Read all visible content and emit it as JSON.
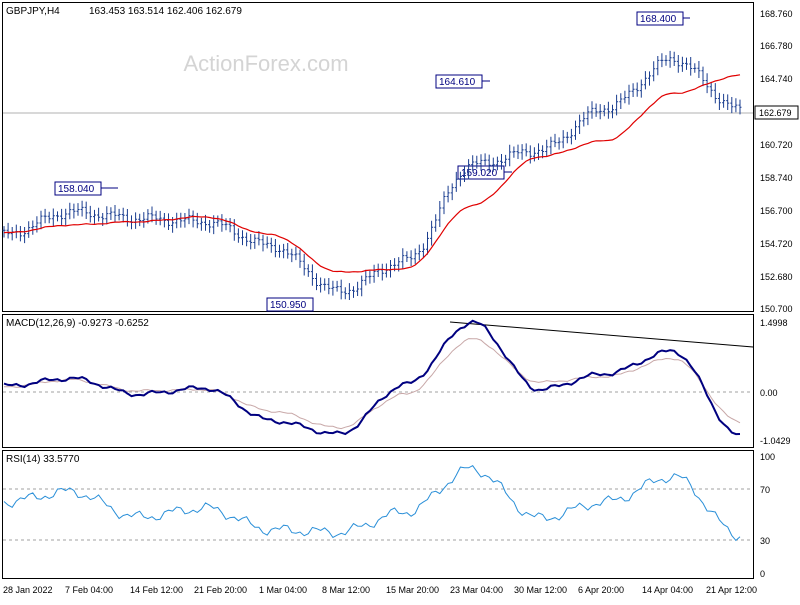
{
  "header": {
    "symbol": "GBPJPY,H4",
    "ohlc": "163.453 163.514 162.406 162.679"
  },
  "watermark": "ActionForex.com",
  "colors": {
    "bar": "#1a3d8f",
    "ma": "#e00000",
    "macd": "#000080",
    "signal": "#c8a8a8",
    "rsi": "#2a8fd8",
    "trendline": "#000000",
    "grid": "#c8c8c8",
    "dashed": "#a0a0a0",
    "label_border": "#000080",
    "background": "#ffffff"
  },
  "price_panel": {
    "axis_ticks": [
      "168.760",
      "166.780",
      "164.740",
      "162.679",
      "160.720",
      "158.740",
      "156.700",
      "154.720",
      "152.680",
      "150.700"
    ],
    "current_price": "162.679",
    "annotations": [
      {
        "label": "158.040",
        "value": 158.04,
        "kind": "high"
      },
      {
        "label": "150.950",
        "value": 150.95,
        "kind": "low"
      },
      {
        "label": "164.610",
        "value": 164.61,
        "kind": "high"
      },
      {
        "label": "159.020",
        "value": 159.02,
        "kind": "low"
      },
      {
        "label": "168.400",
        "value": 168.4,
        "kind": "high"
      }
    ]
  },
  "macd_panel": {
    "title": "MACD(12,26,9) -0.9273 -0.6252",
    "axis_ticks": [
      "1.4998",
      "0.00",
      "-1.0429"
    ]
  },
  "rsi_panel": {
    "title": "RSI(14) 33.5770",
    "axis_ticks": [
      "100",
      "70",
      "30",
      "0"
    ]
  },
  "time_axis": [
    "28 Jan 2022",
    "7 Feb 04:00",
    "14 Feb 12:00",
    "21 Feb 20:00",
    "1 Mar 04:00",
    "8 Mar 12:00",
    "15 Mar 20:00",
    "23 Mar 04:00",
    "30 Mar 12:00",
    "6 Apr 20:00",
    "14 Apr 04:00",
    "21 Apr 12:00"
  ],
  "chart_data": [
    {
      "type": "line",
      "panel": "price",
      "title": "GBPJPY,H4",
      "x": [
        "28 Jan 2022",
        "7 Feb 04:00",
        "14 Feb 12:00",
        "21 Feb 20:00",
        "1 Mar 04:00",
        "8 Mar 12:00",
        "15 Mar 20:00",
        "23 Mar 04:00",
        "30 Mar 12:00",
        "6 Apr 20:00",
        "14 Apr 04:00",
        "21 Apr 12:00"
      ],
      "ylim": [
        150.3,
        169.2
      ],
      "series": [
        {
          "name": "",
          "role": "price_close",
          "values": [
            155.0,
            156.4,
            156.0,
            155.8,
            154.3,
            151.5,
            153.4,
            159.3,
            160.2,
            162.8,
            165.8,
            162.68
          ]
        },
        {
          "name": "",
          "role": "moving_average",
          "values": [
            155.1,
            155.6,
            155.8,
            156.1,
            155.0,
            152.7,
            152.9,
            156.8,
            159.8,
            160.8,
            163.7,
            164.8
          ]
        }
      ]
    },
    {
      "type": "line",
      "panel": "macd",
      "title": "MACD(12,26,9) -0.9273 -0.6252",
      "ylim": [
        -1.15,
        1.6
      ],
      "series": [
        {
          "name": "",
          "role": "macd",
          "values": [
            0.12,
            0.28,
            -0.05,
            0.08,
            -0.6,
            -0.88,
            0.15,
            1.45,
            0.05,
            0.38,
            0.85,
            -0.93
          ]
        },
        {
          "name": "",
          "role": "signal",
          "values": [
            0.1,
            0.25,
            0.02,
            0.05,
            -0.4,
            -0.75,
            -0.05,
            1.1,
            0.2,
            0.32,
            0.7,
            -0.63
          ]
        }
      ]
    },
    {
      "type": "line",
      "panel": "rsi",
      "title": "RSI(14) 33.5770",
      "ylim": [
        0,
        100
      ],
      "series": [
        {
          "name": "",
          "role": "rsi",
          "values": [
            60,
            68,
            48,
            55,
            38,
            36,
            52,
            86,
            47,
            60,
            80,
            33.6
          ]
        }
      ]
    }
  ]
}
